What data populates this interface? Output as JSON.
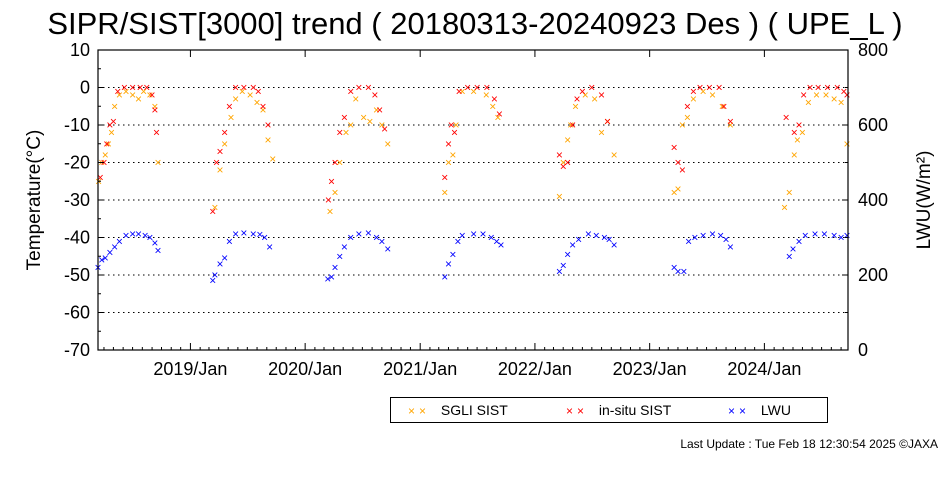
{
  "title": "SIPR/SIST[3000] trend ( 20180313-20240923 Des ) ( UPE_L )",
  "footer": {
    "last_update": "Last Update : Tue Feb 18 12:30:54 2025  ©JAXA"
  },
  "legend": [
    {
      "label": "SGLI SIST",
      "color": "#ffa500"
    },
    {
      "label": "in-situ SIST",
      "color": "#ff0000"
    },
    {
      "label": "LWU",
      "color": "#0000ff"
    }
  ],
  "chart_data": {
    "type": "scatter",
    "title": "SIPR/SIST[3000] trend ( 20180313-20240923 Des ) ( UPE_L )",
    "ylabel": "Temperature(°C)",
    "y2label": "LWU(W/m²)",
    "xlim": [
      "2018-03-13",
      "2024-09-23"
    ],
    "ylim": [
      -70,
      10
    ],
    "y2lim": [
      0,
      800
    ],
    "x_ticks": [
      "2019/Jan",
      "2020/Jan",
      "2021/Jan",
      "2022/Jan",
      "2023/Jan",
      "2024/Jan"
    ],
    "y_ticks": [
      10,
      0,
      -10,
      -20,
      -30,
      -40,
      -50,
      -60,
      -70
    ],
    "y2_ticks": [
      800,
      600,
      400,
      200,
      0
    ],
    "grid": "horizontal dotted",
    "legend_position": "bottom",
    "series": [
      {
        "name": "SGLI SIST",
        "axis": "left",
        "color": "#ffa500",
        "points": [
          [
            "2018-03-15",
            -25
          ],
          [
            "2018-03-25",
            -20
          ],
          [
            "2018-04-05",
            -18
          ],
          [
            "2018-04-15",
            -15
          ],
          [
            "2018-04-25",
            -12
          ],
          [
            "2018-05-05",
            -5
          ],
          [
            "2018-05-20",
            -2
          ],
          [
            "2018-06-10",
            -1
          ],
          [
            "2018-07-01",
            -2
          ],
          [
            "2018-07-20",
            -3
          ],
          [
            "2018-08-05",
            -1
          ],
          [
            "2018-08-25",
            -2
          ],
          [
            "2018-09-10",
            -5
          ],
          [
            "2018-09-20",
            -20
          ],
          [
            "2019-03-20",
            -32
          ],
          [
            "2019-04-05",
            -22
          ],
          [
            "2019-04-20",
            -15
          ],
          [
            "2019-05-10",
            -8
          ],
          [
            "2019-05-25",
            -3
          ],
          [
            "2019-06-15",
            -1
          ],
          [
            "2019-07-10",
            -2
          ],
          [
            "2019-08-01",
            -4
          ],
          [
            "2019-08-20",
            -6
          ],
          [
            "2019-09-05",
            -14
          ],
          [
            "2019-09-20",
            -19
          ],
          [
            "2020-03-20",
            -33
          ],
          [
            "2020-04-05",
            -28
          ],
          [
            "2020-04-20",
            -20
          ],
          [
            "2020-05-10",
            -12
          ],
          [
            "2020-05-25",
            -10
          ],
          [
            "2020-06-10",
            -3
          ],
          [
            "2020-07-05",
            -8
          ],
          [
            "2020-07-25",
            -9
          ],
          [
            "2020-08-15",
            -6
          ],
          [
            "2020-09-01",
            -10
          ],
          [
            "2020-09-20",
            -15
          ],
          [
            "2021-03-20",
            -28
          ],
          [
            "2021-04-01",
            -20
          ],
          [
            "2021-04-15",
            -18
          ],
          [
            "2021-04-25",
            -10
          ],
          [
            "2021-05-15",
            -1
          ],
          [
            "2021-06-20",
            -1
          ],
          [
            "2021-07-30",
            -2
          ],
          [
            "2021-08-20",
            -5
          ],
          [
            "2021-09-05",
            -8
          ],
          [
            "2022-03-20",
            -29
          ],
          [
            "2022-04-01",
            -20
          ],
          [
            "2022-04-15",
            -14
          ],
          [
            "2022-04-25",
            -10
          ],
          [
            "2022-05-10",
            -5
          ],
          [
            "2022-06-10",
            -2
          ],
          [
            "2022-07-10",
            -3
          ],
          [
            "2022-08-01",
            -12
          ],
          [
            "2022-08-20",
            -9
          ],
          [
            "2022-09-10",
            -18
          ],
          [
            "2023-03-20",
            -28
          ],
          [
            "2023-04-01",
            -27
          ],
          [
            "2023-04-15",
            -10
          ],
          [
            "2023-05-01",
            -8
          ],
          [
            "2023-05-20",
            -3
          ],
          [
            "2023-06-20",
            -1
          ],
          [
            "2023-07-20",
            -2
          ],
          [
            "2023-08-20",
            -5
          ],
          [
            "2023-09-15",
            -10
          ],
          [
            "2024-03-05",
            -32
          ],
          [
            "2024-03-20",
            -28
          ],
          [
            "2024-04-05",
            -18
          ],
          [
            "2024-04-15",
            -14
          ],
          [
            "2024-05-01",
            -12
          ],
          [
            "2024-05-20",
            -4
          ],
          [
            "2024-06-15",
            -2
          ],
          [
            "2024-07-15",
            -2
          ],
          [
            "2024-08-10",
            -3
          ],
          [
            "2024-09-01",
            -4
          ],
          [
            "2024-09-20",
            -15
          ]
        ]
      },
      {
        "name": "in-situ SIST",
        "axis": "left",
        "color": "#ff0000",
        "points": [
          [
            "2018-03-20",
            -24
          ],
          [
            "2018-04-01",
            -20
          ],
          [
            "2018-04-10",
            -15
          ],
          [
            "2018-04-20",
            -10
          ],
          [
            "2018-05-01",
            -9
          ],
          [
            "2018-05-15",
            -1
          ],
          [
            "2018-06-05",
            0
          ],
          [
            "2018-07-01",
            0
          ],
          [
            "2018-07-25",
            0
          ],
          [
            "2018-08-15",
            0
          ],
          [
            "2018-09-01",
            -2
          ],
          [
            "2018-09-10",
            -6
          ],
          [
            "2018-09-15",
            -12
          ],
          [
            "2019-03-13",
            -33
          ],
          [
            "2019-03-25",
            -20
          ],
          [
            "2019-04-05",
            -17
          ],
          [
            "2019-04-20",
            -12
          ],
          [
            "2019-05-05",
            -5
          ],
          [
            "2019-05-25",
            0
          ],
          [
            "2019-06-20",
            0
          ],
          [
            "2019-07-20",
            0
          ],
          [
            "2019-08-05",
            -1
          ],
          [
            "2019-08-20",
            -5
          ],
          [
            "2019-09-05",
            -10
          ],
          [
            "2020-03-15",
            -30
          ],
          [
            "2020-03-25",
            -25
          ],
          [
            "2020-04-05",
            -20
          ],
          [
            "2020-04-20",
            -12
          ],
          [
            "2020-05-05",
            -8
          ],
          [
            "2020-05-25",
            -1
          ],
          [
            "2020-06-20",
            0
          ],
          [
            "2020-07-20",
            0
          ],
          [
            "2020-08-10",
            -2
          ],
          [
            "2020-08-25",
            -6
          ],
          [
            "2020-09-10",
            -11
          ],
          [
            "2021-03-20",
            -24
          ],
          [
            "2021-04-01",
            -15
          ],
          [
            "2021-04-10",
            -10
          ],
          [
            "2021-04-20",
            -12
          ],
          [
            "2021-05-05",
            -1
          ],
          [
            "2021-06-01",
            0
          ],
          [
            "2021-07-01",
            0
          ],
          [
            "2021-08-01",
            0
          ],
          [
            "2021-08-25",
            -3
          ],
          [
            "2021-09-10",
            -7
          ],
          [
            "2022-03-20",
            -18
          ],
          [
            "2022-04-01",
            -21
          ],
          [
            "2022-04-15",
            -20
          ],
          [
            "2022-05-01",
            -10
          ],
          [
            "2022-05-15",
            -3
          ],
          [
            "2022-06-01",
            -1
          ],
          [
            "2022-07-01",
            0
          ],
          [
            "2022-08-01",
            -2
          ],
          [
            "2022-08-20",
            -9
          ],
          [
            "2023-03-20",
            -16
          ],
          [
            "2023-04-01",
            -20
          ],
          [
            "2023-04-15",
            -22
          ],
          [
            "2023-05-01",
            -5
          ],
          [
            "2023-05-20",
            -1
          ],
          [
            "2023-06-10",
            0
          ],
          [
            "2023-07-10",
            0
          ],
          [
            "2023-08-10",
            0
          ],
          [
            "2023-08-25",
            -5
          ],
          [
            "2023-09-15",
            -9
          ],
          [
            "2024-03-10",
            -8
          ],
          [
            "2024-04-05",
            -12
          ],
          [
            "2024-04-20",
            -10
          ],
          [
            "2024-05-05",
            -2
          ],
          [
            "2024-05-25",
            0
          ],
          [
            "2024-06-20",
            0
          ],
          [
            "2024-07-20",
            0
          ],
          [
            "2024-08-20",
            0
          ],
          [
            "2024-09-10",
            -1
          ],
          [
            "2024-09-20",
            -2
          ]
        ]
      },
      {
        "name": "LWU",
        "axis": "right",
        "color": "#0000ff",
        "points": [
          [
            "2018-03-13",
            220
          ],
          [
            "2018-03-25",
            240
          ],
          [
            "2018-04-05",
            245
          ],
          [
            "2018-04-20",
            260
          ],
          [
            "2018-05-05",
            275
          ],
          [
            "2018-05-20",
            290
          ],
          [
            "2018-06-10",
            305
          ],
          [
            "2018-07-01",
            310
          ],
          [
            "2018-07-20",
            310
          ],
          [
            "2018-08-10",
            305
          ],
          [
            "2018-08-25",
            300
          ],
          [
            "2018-09-10",
            285
          ],
          [
            "2018-09-20",
            265
          ],
          [
            "2019-03-13",
            185
          ],
          [
            "2019-03-20",
            200
          ],
          [
            "2019-04-05",
            230
          ],
          [
            "2019-04-20",
            245
          ],
          [
            "2019-05-05",
            290
          ],
          [
            "2019-05-25",
            310
          ],
          [
            "2019-06-20",
            312
          ],
          [
            "2019-07-20",
            310
          ],
          [
            "2019-08-10",
            308
          ],
          [
            "2019-08-25",
            300
          ],
          [
            "2019-09-10",
            275
          ],
          [
            "2020-03-13",
            190
          ],
          [
            "2020-03-25",
            195
          ],
          [
            "2020-04-05",
            220
          ],
          [
            "2020-04-20",
            250
          ],
          [
            "2020-05-05",
            275
          ],
          [
            "2020-05-25",
            300
          ],
          [
            "2020-06-20",
            310
          ],
          [
            "2020-07-20",
            312
          ],
          [
            "2020-08-15",
            300
          ],
          [
            "2020-09-01",
            290
          ],
          [
            "2020-09-20",
            270
          ],
          [
            "2021-03-20",
            195
          ],
          [
            "2021-04-01",
            230
          ],
          [
            "2021-04-15",
            255
          ],
          [
            "2021-05-01",
            290
          ],
          [
            "2021-05-15",
            305
          ],
          [
            "2021-06-20",
            310
          ],
          [
            "2021-07-20",
            310
          ],
          [
            "2021-08-15",
            300
          ],
          [
            "2021-09-01",
            290
          ],
          [
            "2021-09-15",
            280
          ],
          [
            "2022-03-20",
            210
          ],
          [
            "2022-04-01",
            225
          ],
          [
            "2022-04-15",
            255
          ],
          [
            "2022-05-01",
            280
          ],
          [
            "2022-05-20",
            295
          ],
          [
            "2022-06-20",
            310
          ],
          [
            "2022-07-15",
            305
          ],
          [
            "2022-08-10",
            300
          ],
          [
            "2022-08-25",
            295
          ],
          [
            "2022-09-10",
            280
          ],
          [
            "2023-03-20",
            220
          ],
          [
            "2023-04-01",
            210
          ],
          [
            "2023-04-20",
            210
          ],
          [
            "2023-05-05",
            290
          ],
          [
            "2023-05-25",
            300
          ],
          [
            "2023-06-20",
            305
          ],
          [
            "2023-07-20",
            310
          ],
          [
            "2023-08-15",
            305
          ],
          [
            "2023-09-01",
            295
          ],
          [
            "2023-09-15",
            275
          ],
          [
            "2024-03-20",
            250
          ],
          [
            "2024-04-01",
            270
          ],
          [
            "2024-04-20",
            290
          ],
          [
            "2024-05-10",
            305
          ],
          [
            "2024-06-10",
            310
          ],
          [
            "2024-07-10",
            310
          ],
          [
            "2024-08-10",
            305
          ],
          [
            "2024-09-01",
            300
          ],
          [
            "2024-09-20",
            305
          ]
        ]
      }
    ]
  }
}
